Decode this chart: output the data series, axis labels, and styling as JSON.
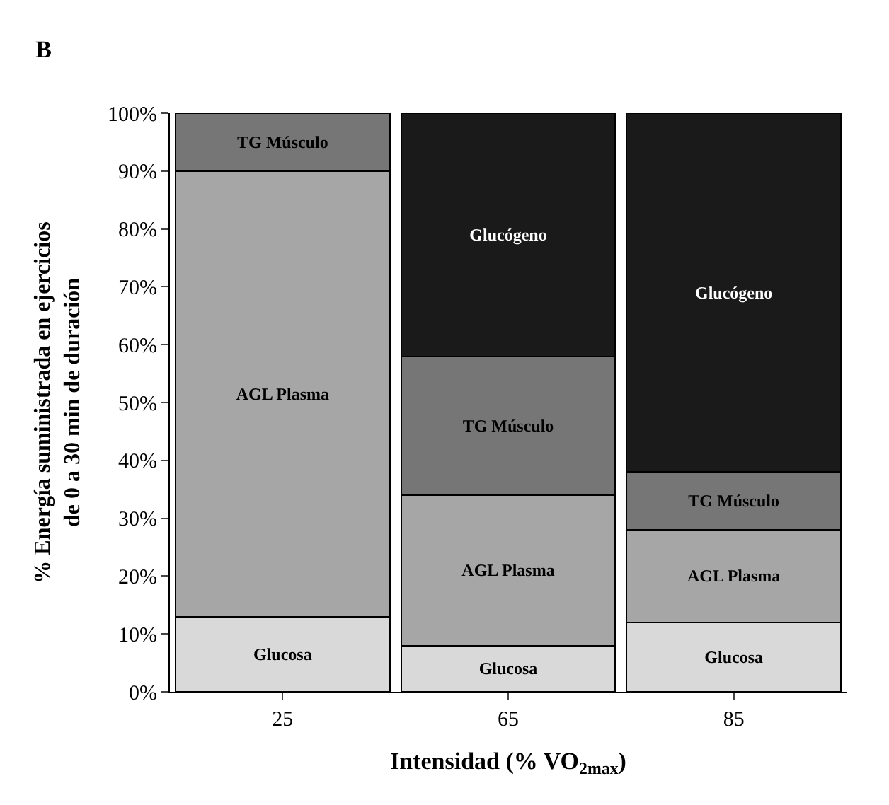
{
  "chart_data": {
    "type": "bar",
    "stacked": true,
    "title": "B",
    "xlabel": "Intensidad (% VO$_{2max}$)",
    "ylabel": "% Energía suministrada en ejercicios\nde 0 a 30 min de duración",
    "categories": [
      "25",
      "65",
      "85"
    ],
    "series": [
      {
        "name": "Glucosa",
        "color": "#d9d9d9",
        "values": [
          13,
          8,
          12
        ]
      },
      {
        "name": "AGL Plasma",
        "color": "#a6a6a6",
        "values": [
          77,
          26,
          16
        ]
      },
      {
        "name": "TG Músculo",
        "color": "#767676",
        "values": [
          10,
          24,
          10
        ]
      },
      {
        "name": "Glucógeno",
        "color": "#1a1a1a",
        "values": [
          0,
          42,
          62
        ]
      }
    ],
    "ylim": [
      0,
      100
    ],
    "yticks": [
      {
        "value": 0,
        "label": "0%"
      },
      {
        "value": 10,
        "label": "10%"
      },
      {
        "value": 20,
        "label": "20%"
      },
      {
        "value": 30,
        "label": "30%"
      },
      {
        "value": 40,
        "label": "40%"
      },
      {
        "value": 50,
        "label": "50%"
      },
      {
        "value": 60,
        "label": "60%"
      },
      {
        "value": 70,
        "label": "70%"
      },
      {
        "value": 80,
        "label": "80%"
      },
      {
        "value": 90,
        "label": "90%"
      },
      {
        "value": 100,
        "label": "100%"
      }
    ],
    "legend": false
  }
}
